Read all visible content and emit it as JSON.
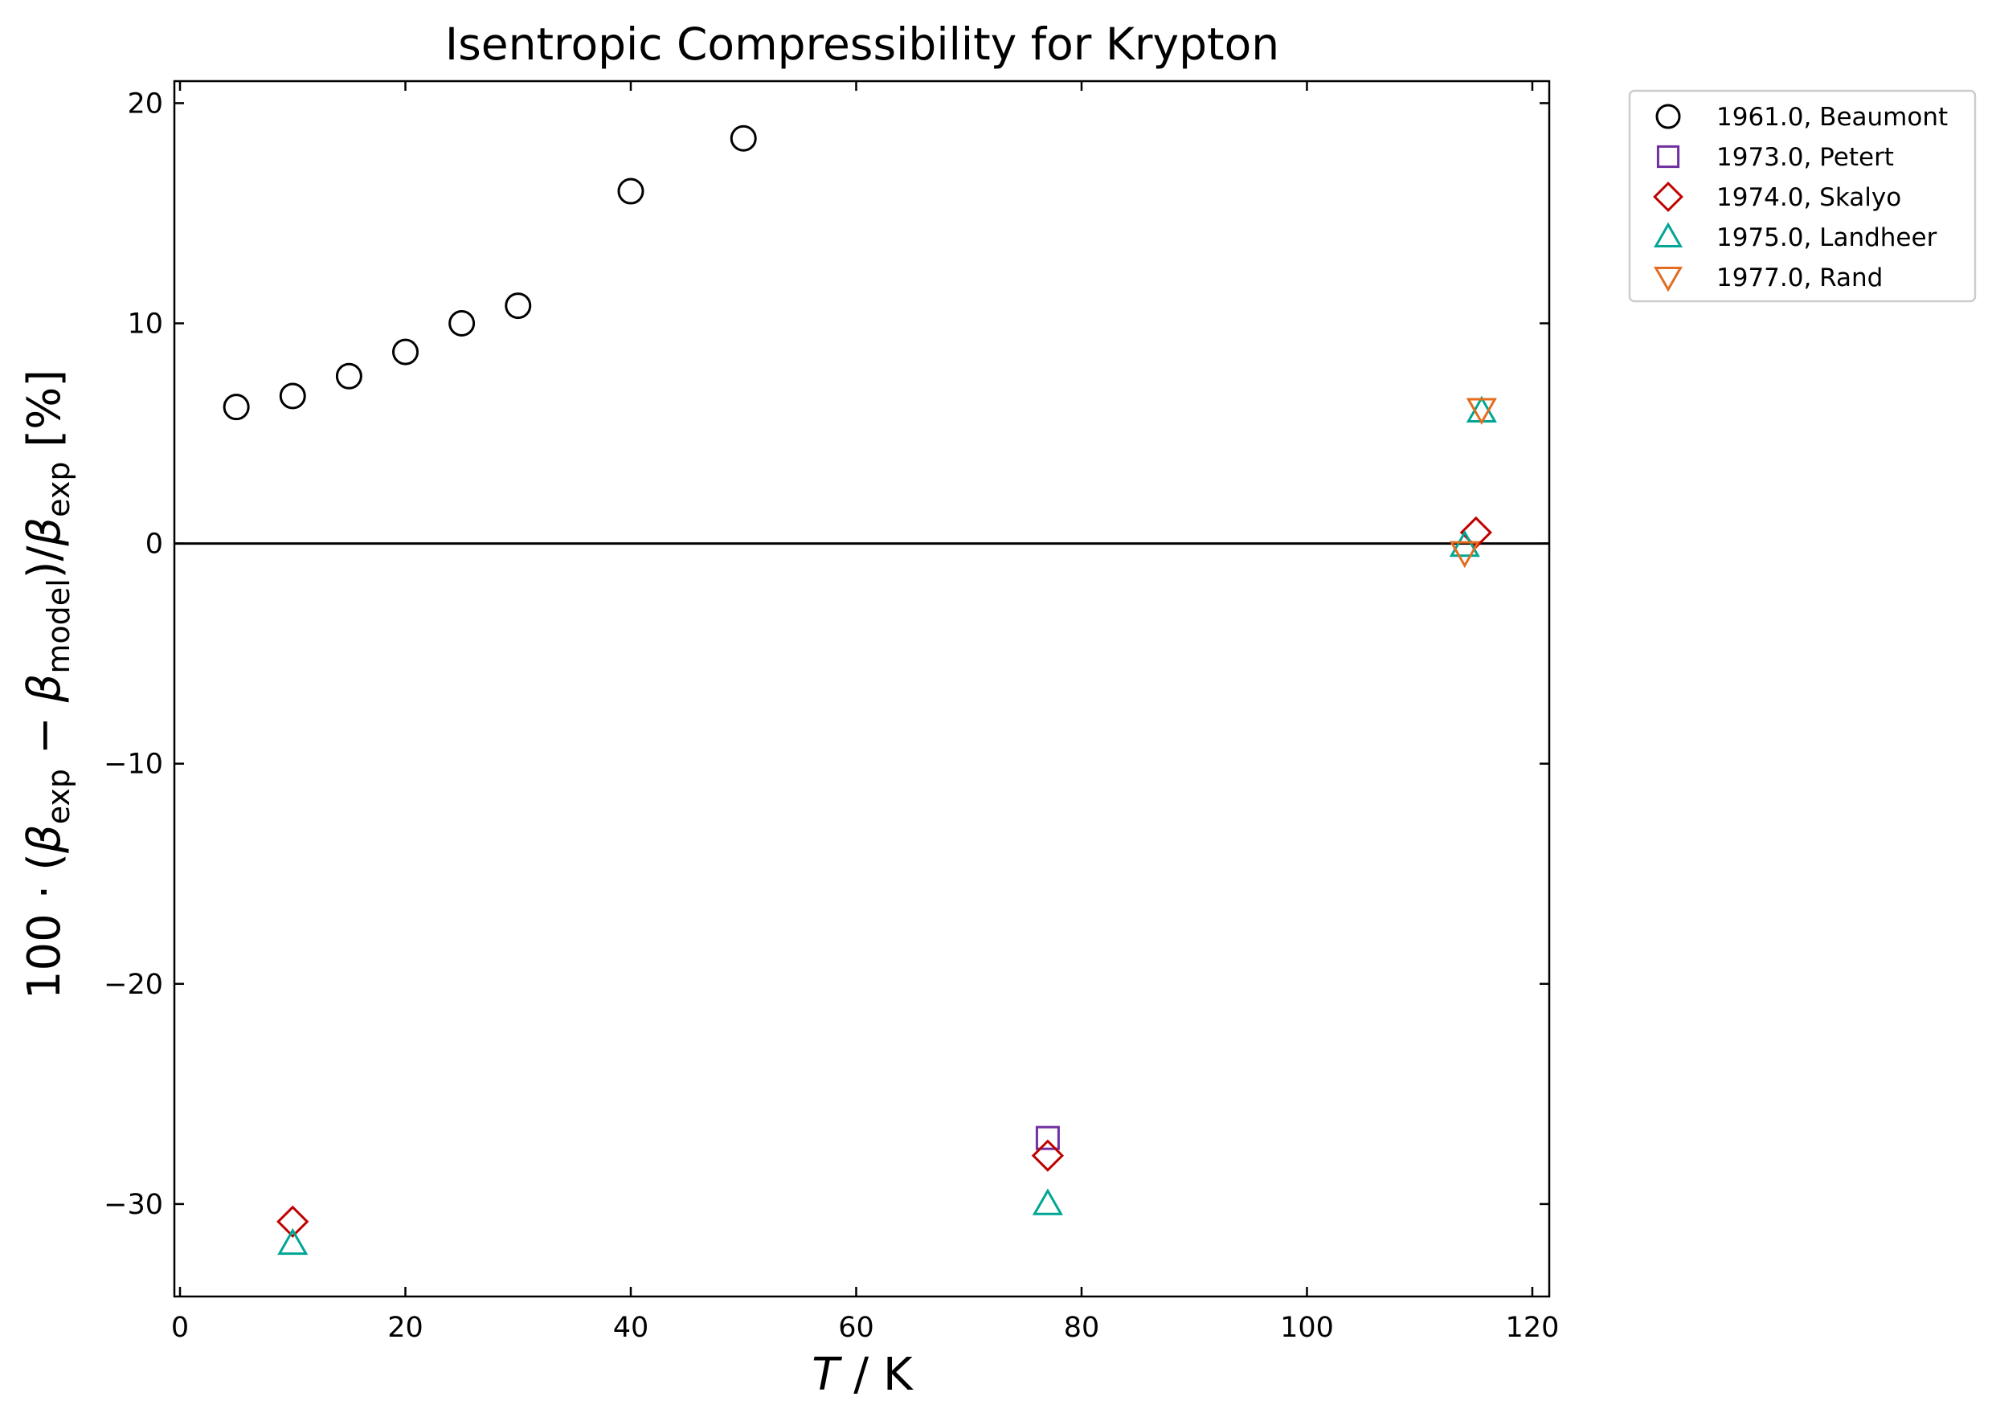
{
  "chart_data": {
    "type": "scatter",
    "title": "Isentropic Compressibility for Krypton",
    "xlabel": "T / K",
    "ylabel": "100 · (β_exp − β_model)/β_exp [%]",
    "xlim": [
      -0.5,
      121.5
    ],
    "ylim": [
      -34.2,
      21
    ],
    "xticks": [
      0,
      20,
      40,
      60,
      80,
      100,
      120
    ],
    "yticks": [
      -30,
      -20,
      -10,
      0,
      10,
      20
    ],
    "zero_line": true,
    "grid": false,
    "legend_position": "outside-top-right",
    "series": [
      {
        "name": "1961.0, Beaumont",
        "marker": "circle",
        "color": "#000000",
        "x": [
          5,
          10,
          15,
          20,
          25,
          30,
          40,
          50
        ],
        "y": [
          6.2,
          6.7,
          7.6,
          8.7,
          10.0,
          10.8,
          16.0,
          18.4
        ]
      },
      {
        "name": "1973.0, Petert",
        "marker": "square",
        "color": "#7030a0",
        "x": [
          77
        ],
        "y": [
          -27.0
        ]
      },
      {
        "name": "1974.0, Skalyo",
        "marker": "diamond",
        "color": "#c00000",
        "x": [
          10,
          77,
          115
        ],
        "y": [
          -30.8,
          -27.8,
          0.5
        ]
      },
      {
        "name": "1975.0, Landheer",
        "marker": "triangle-up",
        "color": "#00a693",
        "x": [
          10,
          77,
          114,
          115.5
        ],
        "y": [
          -31.8,
          -30.0,
          -0.1,
          6.0
        ]
      },
      {
        "name": "1977.0, Rand",
        "marker": "triangle-down",
        "color": "#e36c1f",
        "x": [
          114,
          115.5
        ],
        "y": [
          -0.4,
          6.1
        ]
      }
    ]
  }
}
